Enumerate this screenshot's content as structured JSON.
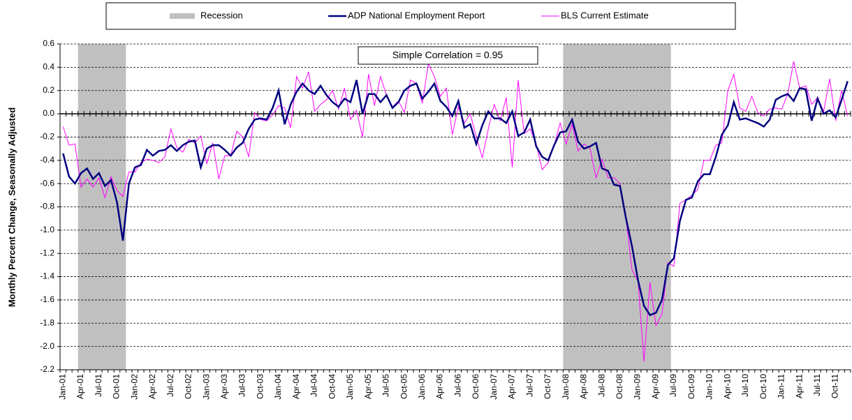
{
  "chart_data": {
    "type": "line",
    "y_label": "Monthly Percent Change, Seasonally Adjusted",
    "annotation": "Simple Correlation = 0.95",
    "categories": [
      "Jan-01",
      null,
      null,
      "Apr-01",
      null,
      null,
      "Jul-01",
      null,
      null,
      "Oct-01",
      null,
      null,
      "Jan-02",
      null,
      null,
      "Apr-02",
      null,
      null,
      "Jul-02",
      null,
      null,
      "Oct-02",
      null,
      null,
      "Jan-03",
      null,
      null,
      "Apr-03",
      null,
      null,
      "Jul-03",
      null,
      null,
      "Oct-03",
      null,
      null,
      "Jan-04",
      null,
      null,
      "Apr-04",
      null,
      null,
      "Jul-04",
      null,
      null,
      "Oct-04",
      null,
      null,
      "Jan-05",
      null,
      null,
      "Apr-05",
      null,
      null,
      "Jul-05",
      null,
      null,
      "Oct-05",
      null,
      null,
      "Jan-06",
      null,
      null,
      "Apr-06",
      null,
      null,
      "Jul-06",
      null,
      null,
      "Oct-06",
      null,
      null,
      "Jan-07",
      null,
      null,
      "Apr-07",
      null,
      null,
      "Jul-07",
      null,
      null,
      "Oct-07",
      null,
      null,
      "Jan-08",
      null,
      null,
      "Apr-08",
      null,
      null,
      "Jul-08",
      null,
      null,
      "Oct-08",
      null,
      null,
      "Jan-09",
      null,
      null,
      "Apr-09",
      null,
      null,
      "Jul-09",
      null,
      null,
      "Oct-09",
      null,
      null,
      "Jan-10",
      null,
      null,
      "Apr-10",
      null,
      null,
      "Jul-10",
      null,
      null,
      "Oct-10",
      null,
      null,
      "Jan-11",
      null,
      null,
      "Apr-11",
      null,
      null,
      "Jul-11",
      null,
      null,
      "Oct-11",
      null,
      null
    ],
    "shading": {
      "name": "Recession",
      "color": "#c0c0c0",
      "periods": [
        [
          3,
          10
        ],
        [
          84,
          101
        ]
      ]
    },
    "series": [
      {
        "name": "ADP National Employment Report",
        "color": "#000080",
        "values": [
          -0.34,
          -0.54,
          -0.6,
          -0.51,
          -0.47,
          -0.56,
          -0.51,
          -0.62,
          -0.57,
          -0.76,
          -1.09,
          -0.6,
          -0.46,
          -0.44,
          -0.31,
          -0.36,
          -0.32,
          -0.31,
          -0.27,
          -0.32,
          -0.27,
          -0.24,
          -0.23,
          -0.46,
          -0.3,
          -0.27,
          -0.27,
          -0.31,
          -0.36,
          -0.29,
          -0.25,
          -0.13,
          -0.05,
          -0.04,
          -0.05,
          0.05,
          0.2,
          -0.09,
          0.08,
          0.19,
          0.26,
          0.2,
          0.17,
          0.24,
          0.16,
          0.1,
          0.06,
          0.13,
          0.1,
          0.29,
          0.0,
          0.17,
          0.17,
          0.1,
          0.16,
          0.05,
          0.1,
          0.2,
          0.24,
          0.26,
          0.13,
          0.19,
          0.26,
          0.11,
          0.06,
          -0.02,
          0.11,
          -0.12,
          -0.09,
          -0.26,
          -0.1,
          0.02,
          -0.04,
          -0.04,
          -0.08,
          0.02,
          -0.19,
          -0.16,
          -0.05,
          -0.28,
          -0.37,
          -0.4,
          -0.27,
          -0.16,
          -0.15,
          -0.05,
          -0.24,
          -0.3,
          -0.28,
          -0.25,
          -0.47,
          -0.49,
          -0.61,
          -0.62,
          -0.9,
          -1.14,
          -1.43,
          -1.65,
          -1.73,
          -1.71,
          -1.6,
          -1.3,
          -1.24,
          -0.92,
          -0.74,
          -0.72,
          -0.58,
          -0.52,
          -0.52,
          -0.37,
          -0.18,
          -0.1,
          0.1,
          -0.05,
          -0.04,
          -0.06,
          -0.08,
          -0.11,
          -0.05,
          0.12,
          0.15,
          0.17,
          0.11,
          0.22,
          0.21,
          -0.06,
          0.13,
          0.0,
          0.03,
          -0.03,
          0.12,
          0.28
        ]
      },
      {
        "name": "BLS Current Estimate",
        "color": "#ff00ff",
        "values": [
          -0.11,
          -0.27,
          -0.26,
          -0.63,
          -0.56,
          -0.63,
          -0.55,
          -0.72,
          -0.54,
          -0.66,
          -0.71,
          -0.5,
          -0.5,
          -0.42,
          -0.39,
          -0.4,
          -0.42,
          -0.37,
          -0.13,
          -0.29,
          -0.33,
          -0.22,
          -0.25,
          -0.19,
          -0.43,
          -0.25,
          -0.56,
          -0.36,
          -0.36,
          -0.15,
          -0.2,
          -0.37,
          0.01,
          -0.05,
          -0.06,
          -0.01,
          0.07,
          0.05,
          -0.12,
          0.32,
          0.22,
          0.36,
          0.02,
          0.08,
          0.12,
          0.2,
          0.04,
          0.22,
          -0.05,
          0.03,
          -0.2,
          0.34,
          0.07,
          0.32,
          0.16,
          0.06,
          0.11,
          0.01,
          0.29,
          0.26,
          0.09,
          0.43,
          0.32,
          0.15,
          0.22,
          -0.18,
          0.06,
          -0.08,
          0.0,
          -0.2,
          -0.38,
          -0.13,
          0.08,
          -0.06,
          0.14,
          -0.46,
          0.29,
          -0.17,
          -0.13,
          -0.26,
          -0.48,
          -0.42,
          -0.27,
          -0.08,
          -0.26,
          -0.09,
          -0.32,
          -0.26,
          -0.3,
          -0.55,
          -0.39,
          -0.55,
          -0.55,
          -0.6,
          -0.9,
          -1.34,
          -1.44,
          -2.13,
          -1.45,
          -1.82,
          -1.72,
          -1.28,
          -1.31,
          -0.77,
          -0.74,
          -0.7,
          -0.65,
          -0.4,
          -0.4,
          -0.27,
          -0.25,
          0.2,
          0.34,
          0.05,
          0.02,
          0.15,
          0.01,
          -0.02,
          0.04,
          0.05,
          0.04,
          0.17,
          0.45,
          0.22,
          0.24,
          0.08,
          0.14,
          0.02,
          0.3,
          -0.06,
          0.2,
          -0.02
        ]
      }
    ],
    "ylim": [
      -2.2,
      0.6
    ],
    "yticks": [
      0.6,
      0.4,
      0.2,
      {
        "value": 0,
        "label": "0.0"
      },
      -0.2,
      -0.4,
      -0.6,
      -0.8,
      {
        "value": -1,
        "label": "-1.0"
      },
      -1.2,
      -1.4,
      -1.6,
      -1.8,
      {
        "value": -2,
        "label": "-2.0"
      },
      -2.2
    ],
    "grid": true
  }
}
